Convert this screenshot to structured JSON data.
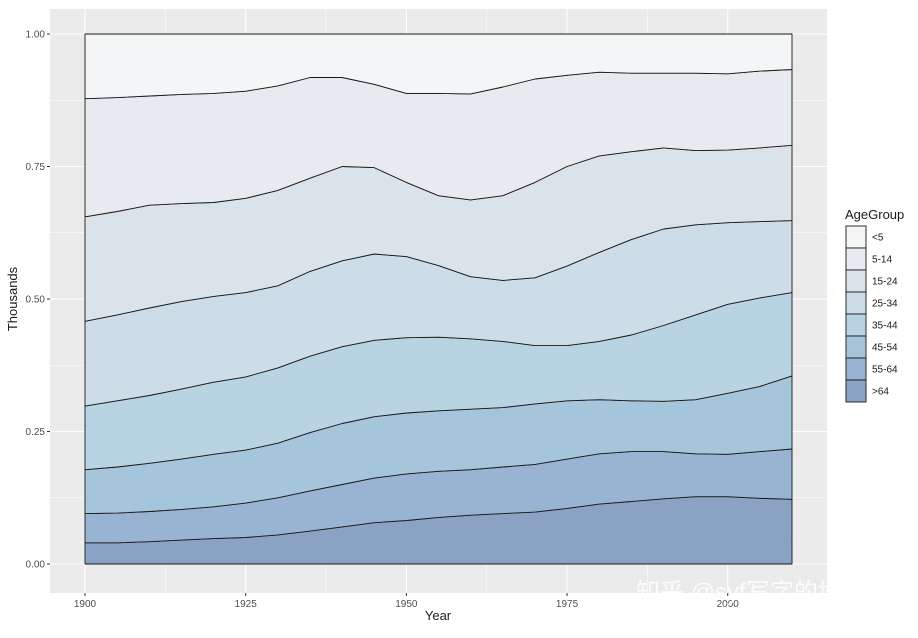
{
  "chart_data": {
    "type": "area",
    "stacked": true,
    "xlabel": "Year",
    "ylabel": "Thousands",
    "xlim": [
      1900,
      2010
    ],
    "ylim": [
      0,
      1
    ],
    "x_ticks": [
      1900,
      1925,
      1950,
      1975,
      2000
    ],
    "x_tick_labels": [
      "1900",
      "1925",
      "1950",
      "1975",
      "2000"
    ],
    "y_ticks": [
      0,
      0.25,
      0.5,
      0.75,
      1.0
    ],
    "y_tick_labels": [
      "0.00",
      "0.25",
      "0.50",
      "0.75",
      "1.00"
    ],
    "grid": true,
    "legend": {
      "title": "AgeGroup",
      "position": "right"
    },
    "x": [
      1900,
      1905,
      1910,
      1915,
      1920,
      1925,
      1930,
      1935,
      1940,
      1945,
      1950,
      1955,
      1960,
      1965,
      1970,
      1975,
      1980,
      1985,
      1990,
      1995,
      2000,
      2005,
      2010
    ],
    "boundaries": [
      [
        0.04,
        0.04,
        0.042,
        0.045,
        0.048,
        0.05,
        0.055,
        0.062,
        0.07,
        0.078,
        0.082,
        0.088,
        0.092,
        0.095,
        0.098,
        0.105,
        0.113,
        0.118,
        0.123,
        0.127,
        0.127,
        0.124,
        0.122
      ],
      [
        0.095,
        0.096,
        0.099,
        0.103,
        0.108,
        0.115,
        0.125,
        0.138,
        0.15,
        0.162,
        0.17,
        0.175,
        0.178,
        0.183,
        0.188,
        0.198,
        0.208,
        0.212,
        0.212,
        0.208,
        0.207,
        0.212,
        0.217
      ],
      [
        0.178,
        0.183,
        0.19,
        0.198,
        0.207,
        0.215,
        0.228,
        0.248,
        0.265,
        0.278,
        0.285,
        0.289,
        0.292,
        0.295,
        0.302,
        0.308,
        0.31,
        0.308,
        0.307,
        0.31,
        0.322,
        0.335,
        0.355
      ],
      [
        0.298,
        0.308,
        0.318,
        0.33,
        0.343,
        0.353,
        0.37,
        0.392,
        0.41,
        0.422,
        0.427,
        0.428,
        0.425,
        0.42,
        0.412,
        0.412,
        0.42,
        0.432,
        0.45,
        0.47,
        0.49,
        0.502,
        0.512
      ],
      [
        0.458,
        0.47,
        0.483,
        0.495,
        0.505,
        0.512,
        0.525,
        0.552,
        0.572,
        0.585,
        0.58,
        0.563,
        0.542,
        0.535,
        0.54,
        0.562,
        0.588,
        0.612,
        0.632,
        0.64,
        0.644,
        0.646,
        0.648
      ],
      [
        0.655,
        0.665,
        0.677,
        0.68,
        0.682,
        0.69,
        0.705,
        0.728,
        0.75,
        0.748,
        0.72,
        0.695,
        0.687,
        0.695,
        0.72,
        0.75,
        0.77,
        0.778,
        0.785,
        0.78,
        0.781,
        0.785,
        0.79
      ],
      [
        0.878,
        0.88,
        0.883,
        0.886,
        0.888,
        0.892,
        0.902,
        0.918,
        0.918,
        0.905,
        0.888,
        0.888,
        0.887,
        0.9,
        0.915,
        0.922,
        0.928,
        0.926,
        0.926,
        0.926,
        0.925,
        0.93,
        0.933
      ],
      [
        1,
        1,
        1,
        1,
        1,
        1,
        1,
        1,
        1,
        1,
        1,
        1,
        1,
        1,
        1,
        1,
        1,
        1,
        1,
        1,
        1,
        1,
        1
      ]
    ],
    "series": [
      {
        "name": "<5",
        "color": "#f4f5f6"
      },
      {
        "name": "5-14",
        "color": "#e7ebef"
      },
      {
        "name": "15-24",
        "color": "#dbe3ea"
      },
      {
        "name": "25-34",
        "color": "#ccdde7"
      },
      {
        "name": "35-44",
        "color": "#b8d3e2"
      },
      {
        "name": "45-54",
        "color": "#a5c5da"
      },
      {
        "name": "55-64",
        "color": "#97b5d2"
      },
      {
        "name": ">64",
        "color": "#8aa3c4"
      }
    ],
    "stack_order_bottom_to_top": [
      ">64",
      "55-64",
      "45-54",
      "35-44",
      "25-34",
      "15-24",
      "5-14",
      "<5"
    ],
    "watermark": "知乎 @syf写字的地方"
  }
}
